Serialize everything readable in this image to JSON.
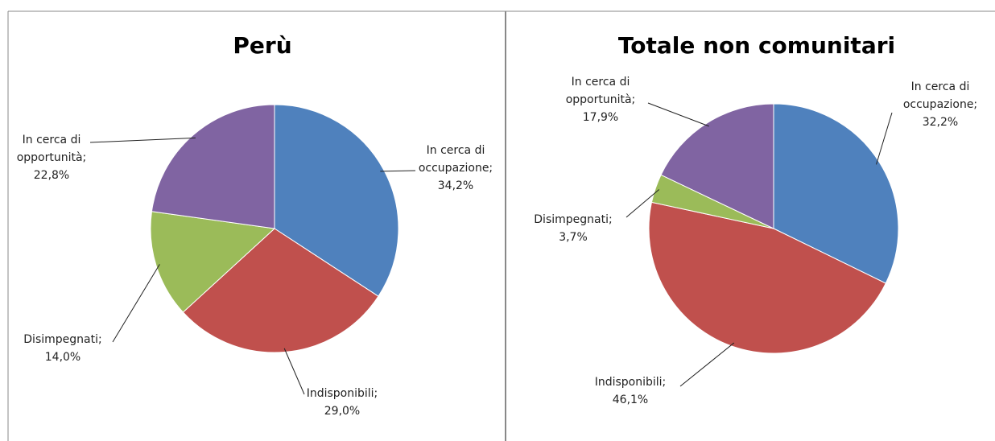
{
  "chart_data": [
    {
      "type": "pie",
      "title": "Perù",
      "categories": [
        "In cerca di occupazione;",
        "Indisponibili;",
        "Disimpegnati;",
        "In cerca di opportunità;"
      ],
      "values": [
        34.2,
        29.0,
        14.0,
        22.8
      ],
      "value_labels": [
        "34,2%",
        "29,0%",
        "14,0%",
        "22,8%"
      ],
      "colors": [
        "#4f81bd",
        "#c0504d",
        "#9bbb59",
        "#8064a2"
      ]
    },
    {
      "type": "pie",
      "title": "Totale non comunitari",
      "categories": [
        "In cerca di occupazione;",
        "Indisponibili;",
        "Disimpegnati;",
        "In cerca di opportunità;"
      ],
      "values": [
        32.2,
        46.1,
        3.7,
        17.9
      ],
      "value_labels": [
        "32,2%",
        "46,1%",
        "3,7%",
        "17,9%"
      ],
      "colors": [
        "#4f81bd",
        "#c0504d",
        "#9bbb59",
        "#8064a2"
      ]
    }
  ]
}
